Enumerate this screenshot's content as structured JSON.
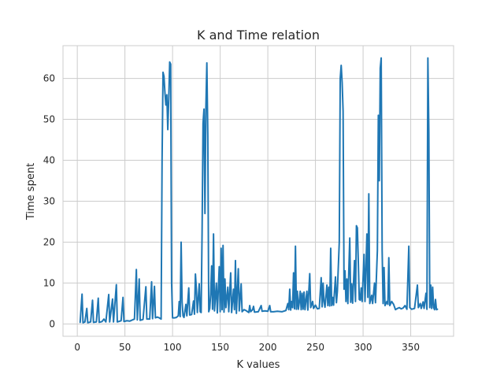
{
  "chart_data": {
    "type": "line",
    "title": "K and Time relation",
    "xlabel": "K values",
    "ylabel": "Time spent",
    "xlim": [
      -15,
      395
    ],
    "ylim": [
      -3,
      68
    ],
    "xticks": [
      0,
      50,
      100,
      150,
      200,
      250,
      300,
      350
    ],
    "yticks": [
      0,
      10,
      20,
      30,
      40,
      50,
      60
    ],
    "grid": true,
    "series": [
      {
        "name": "",
        "color": "#1f77b4",
        "points": [
          [
            3,
            0.4
          ],
          [
            5,
            7.3
          ],
          [
            6,
            0.3
          ],
          [
            8,
            0.5
          ],
          [
            10,
            3.8
          ],
          [
            11,
            0.3
          ],
          [
            14,
            0.5
          ],
          [
            16,
            5.8
          ],
          [
            17,
            0.4
          ],
          [
            20,
            0.5
          ],
          [
            22,
            6.3
          ],
          [
            23,
            0.4
          ],
          [
            26,
            0.6
          ],
          [
            28,
            1.2
          ],
          [
            30,
            0.5
          ],
          [
            33,
            7.2
          ],
          [
            34,
            0.5
          ],
          [
            37,
            6.1
          ],
          [
            38,
            0.5
          ],
          [
            41,
            9.6
          ],
          [
            42,
            0.5
          ],
          [
            46,
            0.8
          ],
          [
            48,
            6.5
          ],
          [
            49,
            0.6
          ],
          [
            52,
            0.8
          ],
          [
            55,
            0.7
          ],
          [
            58,
            1.0
          ],
          [
            60,
            1.2
          ],
          [
            62,
            13.3
          ],
          [
            63,
            1.0
          ],
          [
            65,
            11.0
          ],
          [
            66,
            0.9
          ],
          [
            69,
            1.1
          ],
          [
            72,
            9.1
          ],
          [
            73,
            1.2
          ],
          [
            76,
            1.2
          ],
          [
            78,
            10.3
          ],
          [
            79,
            1.3
          ],
          [
            81,
            9.2
          ],
          [
            82,
            1.5
          ],
          [
            84,
            1.7
          ],
          [
            86,
            1.5
          ],
          [
            88,
            1.2
          ],
          [
            89,
            40.0
          ],
          [
            90,
            61.5
          ],
          [
            91,
            60.5
          ],
          [
            92,
            56.5
          ],
          [
            93,
            53.5
          ],
          [
            94,
            56.0
          ],
          [
            95,
            47.5
          ],
          [
            96,
            55.0
          ],
          [
            97,
            64.0
          ],
          [
            98,
            63.5
          ],
          [
            99,
            10.0
          ],
          [
            100,
            1.5
          ],
          [
            102,
            1.5
          ],
          [
            104,
            1.6
          ],
          [
            106,
            2.0
          ],
          [
            107,
            5.5
          ],
          [
            108,
            1.8
          ],
          [
            109,
            20.0
          ],
          [
            110,
            5.3
          ],
          [
            111,
            2.0
          ],
          [
            112,
            1.6
          ],
          [
            114,
            4.8
          ],
          [
            115,
            2.0
          ],
          [
            117,
            8.8
          ],
          [
            118,
            2.2
          ],
          [
            120,
            2.3
          ],
          [
            122,
            5.6
          ],
          [
            123,
            2.4
          ],
          [
            124,
            12.2
          ],
          [
            125,
            8.5
          ],
          [
            126,
            2.8
          ],
          [
            128,
            9.8
          ],
          [
            129,
            3.0
          ],
          [
            130,
            2.8
          ],
          [
            131,
            22.5
          ],
          [
            132,
            49.0
          ],
          [
            133,
            52.5
          ],
          [
            134,
            27.0
          ],
          [
            135,
            53.0
          ],
          [
            136,
            63.8
          ],
          [
            137,
            46.0
          ],
          [
            138,
            3.0
          ],
          [
            139,
            3.8
          ],
          [
            140,
            7.2
          ],
          [
            141,
            14.2
          ],
          [
            142,
            3.6
          ],
          [
            143,
            22.0
          ],
          [
            144,
            3.2
          ],
          [
            146,
            10.0
          ],
          [
            147,
            2.7
          ],
          [
            149,
            14.0
          ],
          [
            150,
            3.0
          ],
          [
            151,
            18.5
          ],
          [
            152,
            3.5
          ],
          [
            153,
            19.2
          ],
          [
            154,
            2.9
          ],
          [
            155,
            11.0
          ],
          [
            156,
            4.0
          ],
          [
            158,
            9.0
          ],
          [
            159,
            3.0
          ],
          [
            161,
            12.5
          ],
          [
            162,
            2.8
          ],
          [
            164,
            8.5
          ],
          [
            165,
            3.5
          ],
          [
            166,
            15.5
          ],
          [
            167,
            2.6
          ],
          [
            169,
            13.5
          ],
          [
            170,
            3.2
          ],
          [
            172,
            9.8
          ],
          [
            173,
            3.0
          ],
          [
            175,
            3.5
          ],
          [
            177,
            3.3
          ],
          [
            180,
            2.8
          ],
          [
            181,
            4.5
          ],
          [
            182,
            3.0
          ],
          [
            184,
            3.5
          ],
          [
            185,
            4.3
          ],
          [
            186,
            2.9
          ],
          [
            190,
            3.0
          ],
          [
            193,
            4.5
          ],
          [
            194,
            3.1
          ],
          [
            197,
            3.2
          ],
          [
            200,
            3.1
          ],
          [
            202,
            4.5
          ],
          [
            203,
            3.0
          ],
          [
            206,
            3.0
          ],
          [
            210,
            3.1
          ],
          [
            215,
            3.0
          ],
          [
            219,
            3.3
          ],
          [
            221,
            5.0
          ],
          [
            222,
            3.5
          ],
          [
            223,
            8.5
          ],
          [
            224,
            3.4
          ],
          [
            225,
            5.5
          ],
          [
            226,
            4.0
          ],
          [
            227,
            12.5
          ],
          [
            228,
            3.7
          ],
          [
            229,
            19.0
          ],
          [
            230,
            3.6
          ],
          [
            231,
            8.0
          ],
          [
            232,
            3.6
          ],
          [
            233,
            5.3
          ],
          [
            234,
            8.0
          ],
          [
            235,
            3.5
          ],
          [
            236,
            7.5
          ],
          [
            237,
            3.6
          ],
          [
            238,
            7.8
          ],
          [
            239,
            3.5
          ],
          [
            241,
            8.0
          ],
          [
            242,
            3.4
          ],
          [
            244,
            12.3
          ],
          [
            245,
            4.0
          ],
          [
            247,
            5.5
          ],
          [
            248,
            3.8
          ],
          [
            250,
            4.6
          ],
          [
            252,
            3.7
          ],
          [
            254,
            3.8
          ],
          [
            256,
            11.3
          ],
          [
            257,
            4.2
          ],
          [
            258,
            10.0
          ],
          [
            259,
            5.5
          ],
          [
            260,
            4.1
          ],
          [
            262,
            9.5
          ],
          [
            263,
            4.5
          ],
          [
            264,
            9.0
          ],
          [
            265,
            4.4
          ],
          [
            266,
            18.5
          ],
          [
            267,
            4.5
          ],
          [
            268,
            6.5
          ],
          [
            269,
            4.6
          ],
          [
            271,
            11.5
          ],
          [
            272,
            5.2
          ],
          [
            273,
            8.0
          ],
          [
            274,
            14.0
          ],
          [
            275,
            20.0
          ],
          [
            276,
            60.0
          ],
          [
            277,
            63.2
          ],
          [
            278,
            59.0
          ],
          [
            279,
            52.0
          ],
          [
            280,
            8.5
          ],
          [
            281,
            13.0
          ],
          [
            282,
            5.5
          ],
          [
            283,
            11.0
          ],
          [
            284,
            5.0
          ],
          [
            286,
            21.0
          ],
          [
            287,
            5.3
          ],
          [
            288,
            9.8
          ],
          [
            289,
            5.1
          ],
          [
            291,
            15.5
          ],
          [
            292,
            5.5
          ],
          [
            293,
            24.0
          ],
          [
            294,
            23.5
          ],
          [
            295,
            15.0
          ],
          [
            296,
            6.0
          ],
          [
            297,
            5.8
          ],
          [
            298,
            8.8
          ],
          [
            299,
            5.5
          ],
          [
            301,
            17.0
          ],
          [
            302,
            5.5
          ],
          [
            304,
            22.0
          ],
          [
            305,
            6.5
          ],
          [
            306,
            31.8
          ],
          [
            307,
            5.0
          ],
          [
            309,
            7.0
          ],
          [
            310,
            5.0
          ],
          [
            312,
            10.0
          ],
          [
            313,
            5.2
          ],
          [
            315,
            18.0
          ],
          [
            316,
            51.0
          ],
          [
            317,
            35.0
          ],
          [
            318,
            62.5
          ],
          [
            319,
            65.0
          ],
          [
            320,
            18.0
          ],
          [
            321,
            5.0
          ],
          [
            322,
            13.8
          ],
          [
            323,
            4.5
          ],
          [
            325,
            5.5
          ],
          [
            326,
            4.8
          ],
          [
            327,
            16.2
          ],
          [
            328,
            4.5
          ],
          [
            330,
            5.5
          ],
          [
            332,
            4.8
          ],
          [
            334,
            3.5
          ],
          [
            336,
            3.8
          ],
          [
            338,
            4.0
          ],
          [
            340,
            3.7
          ],
          [
            342,
            3.9
          ],
          [
            344,
            4.5
          ],
          [
            346,
            3.6
          ],
          [
            348,
            19.0
          ],
          [
            349,
            4.0
          ],
          [
            351,
            3.6
          ],
          [
            354,
            3.8
          ],
          [
            357,
            9.5
          ],
          [
            358,
            4.0
          ],
          [
            360,
            5.0
          ],
          [
            361,
            3.8
          ],
          [
            363,
            5.4
          ],
          [
            364,
            3.8
          ],
          [
            366,
            7.5
          ],
          [
            367,
            3.6
          ],
          [
            368,
            65.0
          ],
          [
            369,
            47.0
          ],
          [
            370,
            4.0
          ],
          [
            371,
            9.5
          ],
          [
            372,
            3.8
          ],
          [
            373,
            9.0
          ],
          [
            374,
            4.0
          ],
          [
            375,
            3.5
          ],
          [
            376,
            6.0
          ],
          [
            377,
            3.5
          ],
          [
            378,
            3.6
          ]
        ]
      }
    ]
  }
}
